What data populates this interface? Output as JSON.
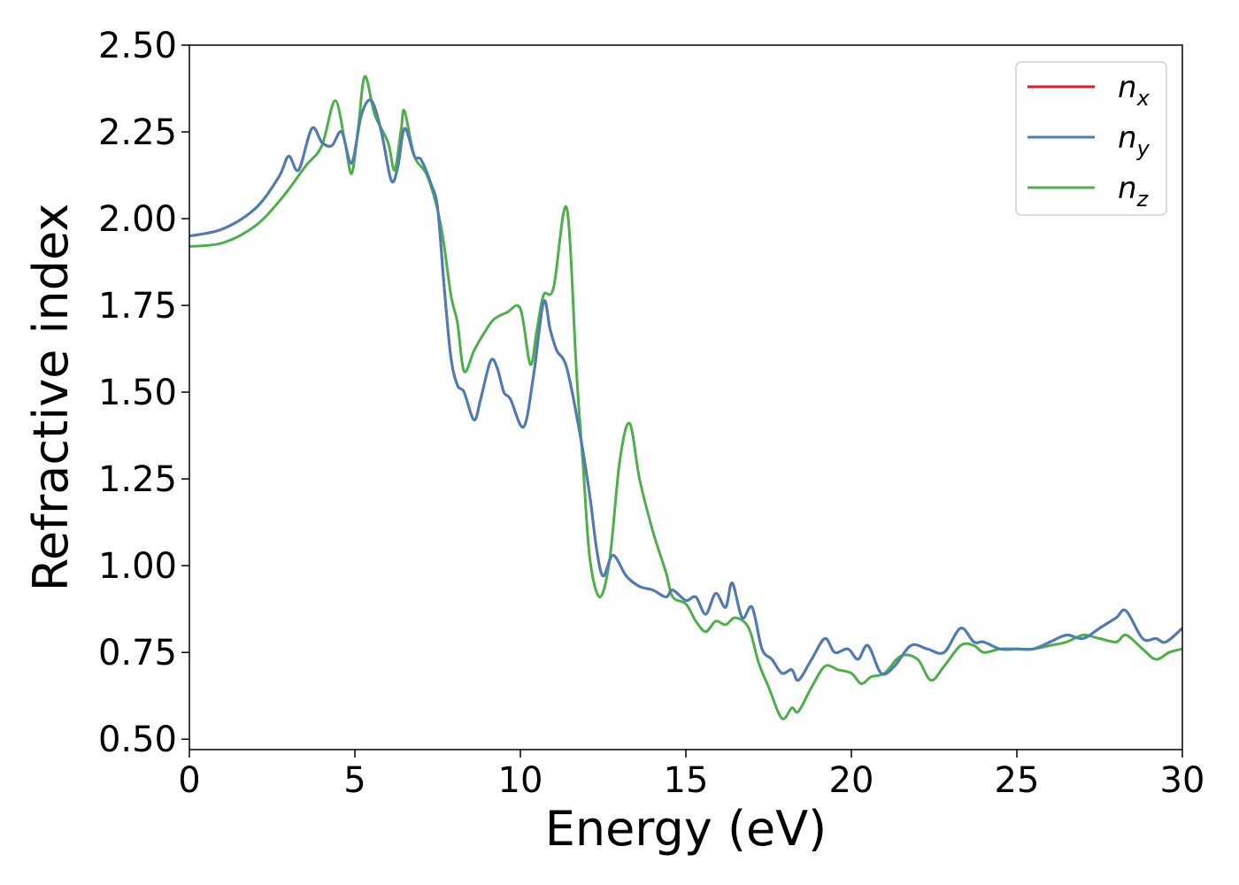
{
  "chart_data": {
    "type": "line",
    "xlabel": "Energy (eV)",
    "ylabel": "Refractive index",
    "xlim": [
      0,
      30
    ],
    "ylim": [
      0.47,
      2.5
    ],
    "xticks": [
      "0",
      "5",
      "10",
      "15",
      "20",
      "25",
      "30"
    ],
    "yticks": [
      "0.50",
      "0.75",
      "1.00",
      "1.25",
      "1.50",
      "1.75",
      "2.00",
      "2.25",
      "2.50"
    ],
    "grid": false,
    "legend_position": "top-right",
    "series": [
      {
        "name": "n",
        "subscript": "x",
        "color": "#e41a1c",
        "points": [
          [
            0,
            1.95
          ],
          [
            1,
            1.97
          ],
          [
            2,
            2.03
          ],
          [
            2.7,
            2.12
          ],
          [
            3,
            2.18
          ],
          [
            3.3,
            2.14
          ],
          [
            3.7,
            2.26
          ],
          [
            4,
            2.22
          ],
          [
            4.3,
            2.21
          ],
          [
            4.6,
            2.25
          ],
          [
            4.9,
            2.16
          ],
          [
            5.2,
            2.3
          ],
          [
            5.5,
            2.34
          ],
          [
            5.8,
            2.25
          ],
          [
            6.1,
            2.11
          ],
          [
            6.3,
            2.15
          ],
          [
            6.5,
            2.26
          ],
          [
            6.8,
            2.18
          ],
          [
            7,
            2.17
          ],
          [
            7.3,
            2.1
          ],
          [
            7.5,
            2.03
          ],
          [
            7.7,
            1.8
          ],
          [
            7.9,
            1.6
          ],
          [
            8.1,
            1.52
          ],
          [
            8.3,
            1.5
          ],
          [
            8.6,
            1.42
          ],
          [
            8.8,
            1.48
          ],
          [
            9.1,
            1.59
          ],
          [
            9.3,
            1.57
          ],
          [
            9.5,
            1.5
          ],
          [
            9.7,
            1.48
          ],
          [
            10.1,
            1.4
          ],
          [
            10.4,
            1.55
          ],
          [
            10.7,
            1.76
          ],
          [
            10.9,
            1.68
          ],
          [
            11.1,
            1.62
          ],
          [
            11.4,
            1.57
          ],
          [
            11.8,
            1.38
          ],
          [
            12.1,
            1.2
          ],
          [
            12.3,
            1.05
          ],
          [
            12.5,
            0.97
          ],
          [
            12.8,
            1.03
          ],
          [
            13.2,
            0.97
          ],
          [
            13.6,
            0.94
          ],
          [
            14,
            0.93
          ],
          [
            14.4,
            0.91
          ],
          [
            14.6,
            0.93
          ],
          [
            15,
            0.9
          ],
          [
            15.3,
            0.91
          ],
          [
            15.6,
            0.86
          ],
          [
            15.9,
            0.92
          ],
          [
            16.2,
            0.88
          ],
          [
            16.4,
            0.95
          ],
          [
            16.7,
            0.85
          ],
          [
            17,
            0.88
          ],
          [
            17.3,
            0.76
          ],
          [
            17.6,
            0.73
          ],
          [
            17.9,
            0.69
          ],
          [
            18.2,
            0.7
          ],
          [
            18.4,
            0.67
          ],
          [
            18.8,
            0.73
          ],
          [
            19.2,
            0.79
          ],
          [
            19.5,
            0.75
          ],
          [
            19.9,
            0.76
          ],
          [
            20.2,
            0.73
          ],
          [
            20.5,
            0.77
          ],
          [
            20.9,
            0.69
          ],
          [
            21.3,
            0.71
          ],
          [
            21.8,
            0.77
          ],
          [
            22.3,
            0.76
          ],
          [
            22.8,
            0.75
          ],
          [
            23.3,
            0.82
          ],
          [
            23.7,
            0.78
          ],
          [
            24,
            0.78
          ],
          [
            24.5,
            0.76
          ],
          [
            25,
            0.76
          ],
          [
            25.5,
            0.76
          ],
          [
            26,
            0.78
          ],
          [
            26.5,
            0.8
          ],
          [
            27,
            0.79
          ],
          [
            27.5,
            0.82
          ],
          [
            28,
            0.85
          ],
          [
            28.3,
            0.87
          ],
          [
            28.8,
            0.79
          ],
          [
            29.2,
            0.79
          ],
          [
            29.5,
            0.78
          ],
          [
            30,
            0.82
          ]
        ]
      },
      {
        "name": "n",
        "subscript": "y",
        "color": "#4a7eb6",
        "points": [
          [
            0,
            1.95
          ],
          [
            1,
            1.97
          ],
          [
            2,
            2.03
          ],
          [
            2.7,
            2.12
          ],
          [
            3,
            2.18
          ],
          [
            3.3,
            2.14
          ],
          [
            3.7,
            2.26
          ],
          [
            4,
            2.22
          ],
          [
            4.3,
            2.21
          ],
          [
            4.6,
            2.25
          ],
          [
            4.9,
            2.16
          ],
          [
            5.2,
            2.3
          ],
          [
            5.5,
            2.34
          ],
          [
            5.8,
            2.25
          ],
          [
            6.1,
            2.11
          ],
          [
            6.3,
            2.15
          ],
          [
            6.5,
            2.26
          ],
          [
            6.8,
            2.18
          ],
          [
            7,
            2.17
          ],
          [
            7.3,
            2.1
          ],
          [
            7.5,
            2.03
          ],
          [
            7.7,
            1.8
          ],
          [
            7.9,
            1.6
          ],
          [
            8.1,
            1.52
          ],
          [
            8.3,
            1.5
          ],
          [
            8.6,
            1.42
          ],
          [
            8.8,
            1.48
          ],
          [
            9.1,
            1.59
          ],
          [
            9.3,
            1.57
          ],
          [
            9.5,
            1.5
          ],
          [
            9.7,
            1.48
          ],
          [
            10.1,
            1.4
          ],
          [
            10.4,
            1.55
          ],
          [
            10.7,
            1.76
          ],
          [
            10.9,
            1.68
          ],
          [
            11.1,
            1.62
          ],
          [
            11.4,
            1.57
          ],
          [
            11.8,
            1.38
          ],
          [
            12.1,
            1.2
          ],
          [
            12.3,
            1.05
          ],
          [
            12.5,
            0.97
          ],
          [
            12.8,
            1.03
          ],
          [
            13.2,
            0.97
          ],
          [
            13.6,
            0.94
          ],
          [
            14,
            0.93
          ],
          [
            14.4,
            0.91
          ],
          [
            14.6,
            0.93
          ],
          [
            15,
            0.9
          ],
          [
            15.3,
            0.91
          ],
          [
            15.6,
            0.86
          ],
          [
            15.9,
            0.92
          ],
          [
            16.2,
            0.88
          ],
          [
            16.4,
            0.95
          ],
          [
            16.7,
            0.85
          ],
          [
            17,
            0.88
          ],
          [
            17.3,
            0.76
          ],
          [
            17.6,
            0.73
          ],
          [
            17.9,
            0.69
          ],
          [
            18.2,
            0.7
          ],
          [
            18.4,
            0.67
          ],
          [
            18.8,
            0.73
          ],
          [
            19.2,
            0.79
          ],
          [
            19.5,
            0.75
          ],
          [
            19.9,
            0.76
          ],
          [
            20.2,
            0.73
          ],
          [
            20.5,
            0.77
          ],
          [
            20.9,
            0.69
          ],
          [
            21.3,
            0.71
          ],
          [
            21.8,
            0.77
          ],
          [
            22.3,
            0.76
          ],
          [
            22.8,
            0.75
          ],
          [
            23.3,
            0.82
          ],
          [
            23.7,
            0.78
          ],
          [
            24,
            0.78
          ],
          [
            24.5,
            0.76
          ],
          [
            25,
            0.76
          ],
          [
            25.5,
            0.76
          ],
          [
            26,
            0.78
          ],
          [
            26.5,
            0.8
          ],
          [
            27,
            0.79
          ],
          [
            27.5,
            0.82
          ],
          [
            28,
            0.85
          ],
          [
            28.3,
            0.87
          ],
          [
            28.8,
            0.79
          ],
          [
            29.2,
            0.79
          ],
          [
            29.5,
            0.78
          ],
          [
            30,
            0.82
          ]
        ]
      },
      {
        "name": "n",
        "subscript": "z",
        "color": "#4daf4a",
        "points": [
          [
            0,
            1.92
          ],
          [
            1,
            1.93
          ],
          [
            2,
            1.98
          ],
          [
            2.8,
            2.06
          ],
          [
            3.5,
            2.15
          ],
          [
            4,
            2.21
          ],
          [
            4.4,
            2.34
          ],
          [
            4.7,
            2.22
          ],
          [
            4.9,
            2.13
          ],
          [
            5.1,
            2.26
          ],
          [
            5.3,
            2.41
          ],
          [
            5.6,
            2.3
          ],
          [
            6,
            2.22
          ],
          [
            6.2,
            2.14
          ],
          [
            6.4,
            2.26
          ],
          [
            6.5,
            2.31
          ],
          [
            6.8,
            2.18
          ],
          [
            7.2,
            2.12
          ],
          [
            7.6,
            1.98
          ],
          [
            7.9,
            1.78
          ],
          [
            8.1,
            1.7
          ],
          [
            8.3,
            1.56
          ],
          [
            8.6,
            1.62
          ],
          [
            8.9,
            1.67
          ],
          [
            9.2,
            1.71
          ],
          [
            9.6,
            1.73
          ],
          [
            10,
            1.74
          ],
          [
            10.3,
            1.58
          ],
          [
            10.5,
            1.68
          ],
          [
            10.7,
            1.78
          ],
          [
            11,
            1.8
          ],
          [
            11.4,
            2.03
          ],
          [
            11.7,
            1.55
          ],
          [
            11.9,
            1.28
          ],
          [
            12.1,
            1.02
          ],
          [
            12.4,
            0.91
          ],
          [
            12.7,
            1.02
          ],
          [
            13,
            1.3
          ],
          [
            13.3,
            1.41
          ],
          [
            13.6,
            1.25
          ],
          [
            14,
            1.1
          ],
          [
            14.4,
            0.98
          ],
          [
            14.6,
            0.91
          ],
          [
            15,
            0.89
          ],
          [
            15.3,
            0.84
          ],
          [
            15.6,
            0.81
          ],
          [
            15.9,
            0.84
          ],
          [
            16.2,
            0.83
          ],
          [
            16.5,
            0.85
          ],
          [
            16.9,
            0.82
          ],
          [
            17.2,
            0.72
          ],
          [
            17.5,
            0.65
          ],
          [
            17.9,
            0.56
          ],
          [
            18.2,
            0.59
          ],
          [
            18.4,
            0.58
          ],
          [
            18.8,
            0.65
          ],
          [
            19.2,
            0.71
          ],
          [
            19.6,
            0.7
          ],
          [
            20,
            0.69
          ],
          [
            20.3,
            0.66
          ],
          [
            20.6,
            0.68
          ],
          [
            21,
            0.69
          ],
          [
            21.5,
            0.74
          ],
          [
            22,
            0.73
          ],
          [
            22.4,
            0.67
          ],
          [
            22.8,
            0.71
          ],
          [
            23.3,
            0.77
          ],
          [
            23.7,
            0.77
          ],
          [
            24,
            0.75
          ],
          [
            24.5,
            0.76
          ],
          [
            25,
            0.76
          ],
          [
            25.5,
            0.76
          ],
          [
            26,
            0.77
          ],
          [
            26.5,
            0.78
          ],
          [
            27,
            0.8
          ],
          [
            27.5,
            0.79
          ],
          [
            28,
            0.78
          ],
          [
            28.3,
            0.8
          ],
          [
            28.8,
            0.76
          ],
          [
            29.2,
            0.73
          ],
          [
            29.6,
            0.75
          ],
          [
            30,
            0.76
          ]
        ]
      }
    ]
  }
}
